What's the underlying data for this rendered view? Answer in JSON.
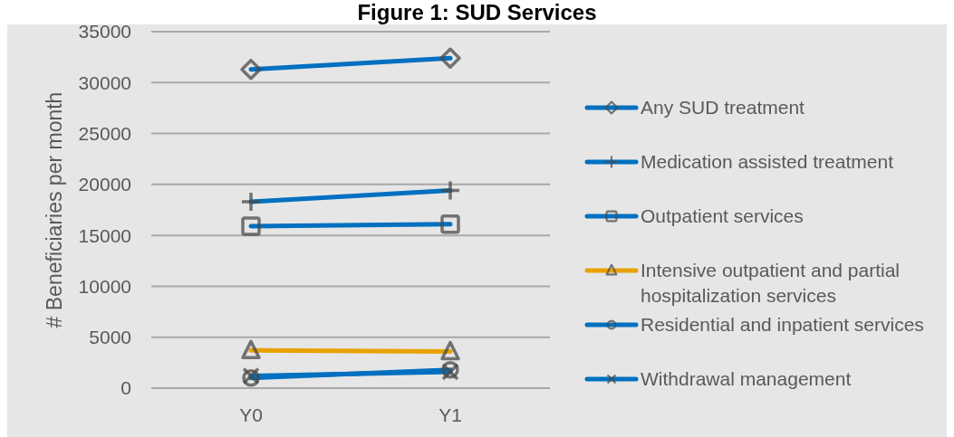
{
  "chart_data": {
    "type": "line",
    "title": "Figure 1: SUD Services",
    "ylabel": "# Beneficiaries per month",
    "categories": [
      "Y0",
      "Y1"
    ],
    "series": [
      {
        "name": "Any SUD treatment",
        "color": "#0070c0",
        "marker": "diamond",
        "values": [
          31300,
          32400
        ]
      },
      {
        "name": "Medication assisted treatment",
        "color": "#0070c0",
        "marker": "plus",
        "values": [
          18300,
          19400
        ]
      },
      {
        "name": "Outpatient services",
        "color": "#0070c0",
        "marker": "square",
        "values": [
          15900,
          16100
        ]
      },
      {
        "name": "Intensive outpatient and partial hospitalization services",
        "color": "#e8a200",
        "marker": "triangle",
        "values": [
          3700,
          3600
        ]
      },
      {
        "name": "Residential and inpatient services",
        "color": "#0070c0",
        "marker": "circle",
        "values": [
          1000,
          1800
        ]
      },
      {
        "name": "Withdrawal management",
        "color": "#0070c0",
        "marker": "cross",
        "values": [
          1200,
          1600
        ]
      }
    ],
    "ylim": [
      0,
      35000
    ],
    "yticks": [
      0,
      5000,
      10000,
      15000,
      20000,
      25000,
      30000,
      35000
    ],
    "grid": "y",
    "legend": "right",
    "line_style": "solid"
  }
}
